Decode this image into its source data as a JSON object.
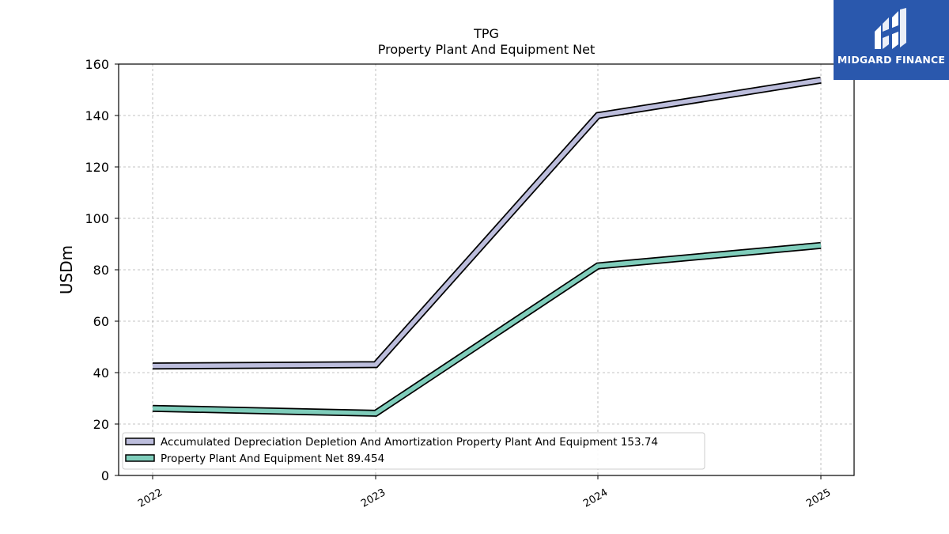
{
  "brand": {
    "name": "MIDGARD FINANCE",
    "logo_icon": "midgard-logo-icon",
    "background": "#2a58ad"
  },
  "chart_data": {
    "type": "line",
    "title": "TPG",
    "subtitle": "Property Plant And Equipment Net",
    "xlabel": "",
    "ylabel": "USDm",
    "categories": [
      "2022",
      "2023",
      "2024",
      "2025"
    ],
    "ylim": [
      0,
      160
    ],
    "yticks": [
      0,
      20,
      40,
      60,
      80,
      100,
      120,
      140,
      160
    ],
    "grid": true,
    "legend_position": "bottom-left",
    "series": [
      {
        "name": "Accumulated Depreciation Depletion And Amortization Property Plant And Equipment",
        "legend_value": "153.74",
        "values": [
          42.6,
          43.1,
          140.0,
          153.74
        ],
        "color": "#bcbddc"
      },
      {
        "name": "Property Plant And Equipment Net",
        "legend_value": "89.454",
        "values": [
          26.1,
          24.2,
          81.5,
          89.454
        ],
        "color": "#7fcdbb"
      }
    ]
  }
}
